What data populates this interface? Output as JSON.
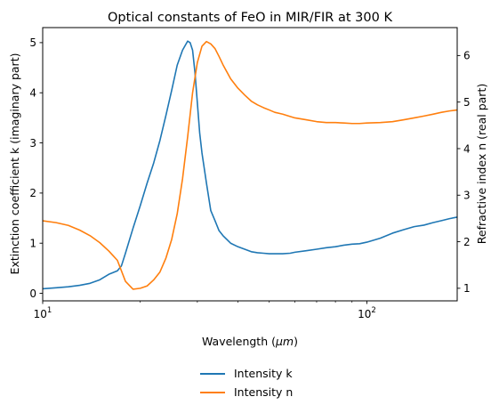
{
  "chart_data": {
    "type": "line",
    "title": "Optical constants of FeO in MIR/FIR at 300 K",
    "xlabel": "Wavelength (μm)",
    "xlabel_parts": {
      "base": "Wavelength (",
      "unit": "μm",
      "close": ")"
    },
    "ylabel_left": "Extinction coefficient k (imaginary part)",
    "ylabel_right": "Refractive index n (real part)",
    "x_scale": "log",
    "xlim": [
      10,
      190
    ],
    "x_major_ticks": [
      {
        "value": 10,
        "base": "10",
        "exp": "1"
      },
      {
        "value": 100,
        "base": "10",
        "exp": "2"
      }
    ],
    "ylim_left": [
      -0.15,
      5.3
    ],
    "y_ticks_left": [
      "0",
      "1",
      "2",
      "3",
      "4",
      "5"
    ],
    "ylim_right": [
      0.73,
      6.6
    ],
    "y_ticks_right": [
      "1",
      "2",
      "3",
      "4",
      "5",
      "6"
    ],
    "grid": false,
    "legend_position": "below",
    "series": [
      {
        "name": "Intensity k",
        "axis": "left",
        "color": "#1f77b4",
        "x": [
          10,
          11,
          12,
          13,
          14,
          15,
          16,
          17,
          17.5,
          18,
          19,
          20,
          21,
          22,
          23,
          24,
          25,
          26,
          27,
          28,
          28.5,
          29,
          29.5,
          30,
          30.5,
          31,
          32,
          33,
          34,
          35,
          36,
          38,
          40,
          42,
          44,
          46,
          48,
          50,
          52,
          55,
          58,
          60,
          65,
          70,
          75,
          80,
          85,
          90,
          95,
          100,
          110,
          120,
          130,
          140,
          150,
          160,
          170,
          180,
          190
        ],
        "y": [
          0.09,
          0.11,
          0.13,
          0.16,
          0.2,
          0.27,
          0.38,
          0.45,
          0.55,
          0.8,
          1.3,
          1.75,
          2.2,
          2.6,
          3.05,
          3.55,
          4.05,
          4.55,
          4.85,
          5.03,
          5.0,
          4.85,
          4.4,
          3.8,
          3.2,
          2.8,
          2.2,
          1.65,
          1.45,
          1.25,
          1.15,
          1.0,
          0.93,
          0.88,
          0.83,
          0.81,
          0.8,
          0.79,
          0.79,
          0.79,
          0.8,
          0.82,
          0.85,
          0.88,
          0.91,
          0.93,
          0.96,
          0.98,
          0.99,
          1.02,
          1.1,
          1.2,
          1.27,
          1.33,
          1.36,
          1.41,
          1.45,
          1.49,
          1.52
        ]
      },
      {
        "name": "Intensity n",
        "axis": "right",
        "color": "#ff7f0e",
        "x": [
          10,
          11,
          12,
          13,
          14,
          15,
          16,
          17,
          18,
          19,
          20,
          21,
          22,
          23,
          24,
          25,
          26,
          27,
          28,
          29,
          30,
          31,
          32,
          33,
          34,
          35,
          36,
          38,
          40,
          42,
          44,
          46,
          48,
          50,
          52,
          55,
          58,
          60,
          65,
          70,
          75,
          80,
          85,
          90,
          95,
          100,
          110,
          120,
          130,
          140,
          150,
          160,
          170,
          180,
          190
        ],
        "y": [
          2.45,
          2.41,
          2.35,
          2.25,
          2.13,
          1.98,
          1.8,
          1.6,
          1.15,
          0.98,
          1.0,
          1.05,
          1.18,
          1.35,
          1.65,
          2.05,
          2.6,
          3.35,
          4.25,
          5.2,
          5.85,
          6.2,
          6.3,
          6.25,
          6.15,
          5.98,
          5.8,
          5.5,
          5.3,
          5.15,
          5.02,
          4.94,
          4.88,
          4.83,
          4.78,
          4.74,
          4.69,
          4.66,
          4.62,
          4.58,
          4.56,
          4.56,
          4.55,
          4.54,
          4.54,
          4.55,
          4.56,
          4.58,
          4.62,
          4.66,
          4.7,
          4.74,
          4.78,
          4.81,
          4.83
        ]
      }
    ]
  }
}
